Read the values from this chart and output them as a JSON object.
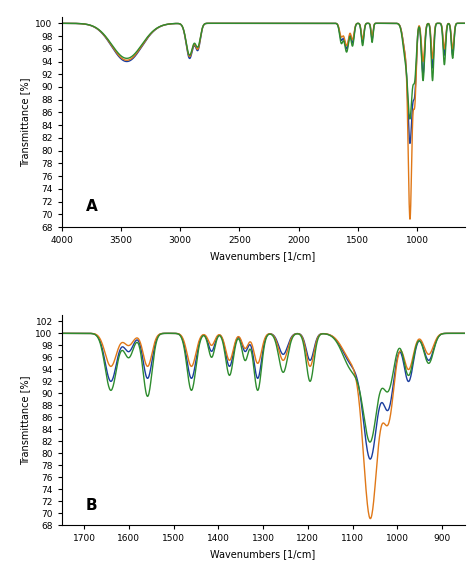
{
  "panel_A": {
    "xmin": 4000,
    "xmax": 600,
    "ymin": 68,
    "ymax": 101,
    "xlabel": "Wavenumbers [1/cm]",
    "ylabel": "Transmittance [%]",
    "label": "A",
    "xticks": [
      4000,
      3500,
      3000,
      2500,
      2000,
      1500,
      1000
    ],
    "yticks": [
      68,
      70,
      72,
      74,
      76,
      78,
      80,
      82,
      84,
      86,
      88,
      90,
      92,
      94,
      96,
      98,
      100
    ]
  },
  "panel_B": {
    "xmin": 1750,
    "xmax": 850,
    "ymin": 68,
    "ymax": 103,
    "xlabel": "Wavenumbers [1/cm]",
    "ylabel": "Transmittance [%]",
    "label": "B",
    "xticks": [
      1700,
      1600,
      1500,
      1400,
      1300,
      1200,
      1100,
      1000,
      900
    ],
    "yticks": [
      68,
      70,
      72,
      74,
      76,
      78,
      80,
      82,
      84,
      86,
      88,
      90,
      92,
      94,
      96,
      98,
      100,
      102
    ]
  },
  "colors": {
    "blue": "#1a3d9e",
    "green": "#2e8c2e",
    "orange": "#e07818"
  },
  "linewidth": 1.0,
  "fig_bg": "#ffffff",
  "axes_bg": "#ffffff"
}
